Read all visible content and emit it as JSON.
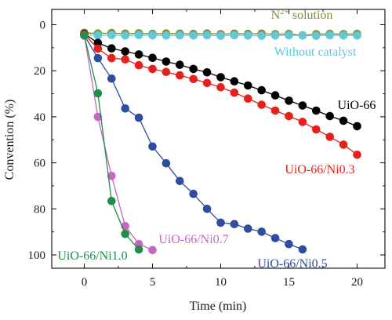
{
  "chart_data": {
    "type": "scatter",
    "xlabel": "Time (min)",
    "ylabel": "Convention (%)",
    "xlim": [
      -2,
      22
    ],
    "ylim": [
      0,
      105
    ],
    "y_inverted": true,
    "x_ticks": [
      0,
      5,
      10,
      15,
      20
    ],
    "y_ticks": [
      0,
      20,
      40,
      60,
      80,
      100
    ],
    "grid": false,
    "series": [
      {
        "name": "N2+ solution",
        "label_main": "N",
        "label_sup": "2+",
        "label_rest": " solution",
        "color": "#8b8b2a",
        "x": [
          0,
          1,
          2,
          3,
          4,
          5,
          6,
          7,
          8,
          9,
          10,
          11,
          12,
          13,
          14,
          15,
          16,
          17,
          18,
          19,
          20
        ],
        "y": [
          3.5,
          3.8,
          3.6,
          3.9,
          3.7,
          4.0,
          3.8,
          3.9,
          4.0,
          3.8,
          4.1,
          3.9,
          4.0,
          3.9,
          4.1,
          4.0,
          4.6,
          4.1,
          4.0,
          4.1,
          4.0
        ]
      },
      {
        "name": "Without catalyst",
        "color": "#5ec9d9",
        "x": [
          0,
          1,
          2,
          3,
          4,
          5,
          6,
          7,
          8,
          9,
          10,
          11,
          12,
          13,
          14,
          15,
          16,
          17,
          18,
          19,
          20
        ],
        "y": [
          4.4,
          4.6,
          4.5,
          4.7,
          4.5,
          4.6,
          4.7,
          4.6,
          4.7,
          4.6,
          4.8,
          4.6,
          4.7,
          4.8,
          4.7,
          4.6,
          4.7,
          4.8,
          4.6,
          4.7,
          4.7
        ]
      },
      {
        "name": "UiO-66",
        "color": "#000000",
        "x": [
          0,
          1,
          2,
          3,
          4,
          5,
          6,
          7,
          8,
          9,
          10,
          11,
          12,
          13,
          14,
          15,
          16,
          17,
          18,
          19,
          20
        ],
        "y": [
          4.0,
          7.9,
          10.3,
          11.6,
          12.9,
          14.4,
          16.0,
          17.4,
          19.2,
          20.7,
          22.8,
          24.6,
          26.4,
          28.5,
          30.7,
          33.0,
          35.1,
          37.3,
          39.7,
          41.7,
          44.1
        ]
      },
      {
        "name": "UiO-66/Ni0.3",
        "color": "#e8201c",
        "x": [
          0,
          1,
          2,
          3,
          4,
          5,
          6,
          7,
          8,
          9,
          10,
          11,
          12,
          13,
          14,
          15,
          16,
          17,
          18,
          19,
          20
        ],
        "y": [
          4.2,
          10.4,
          14.5,
          15.1,
          17.6,
          19.2,
          20.5,
          22.0,
          23.6,
          25.3,
          27.2,
          29.5,
          32.1,
          34.8,
          37.3,
          39.7,
          42.2,
          45.5,
          48.7,
          52.1,
          56.5
        ]
      },
      {
        "name": "UiO-66/Ni0.5",
        "color": "#2e4ca0",
        "x": [
          0,
          1,
          2,
          3,
          4,
          5,
          6,
          7,
          8,
          9,
          10,
          11,
          12,
          13,
          14,
          15,
          16
        ],
        "y": [
          4.6,
          14.5,
          23.4,
          36.4,
          40.4,
          52.9,
          60.2,
          67.9,
          73.5,
          80.0,
          86.0,
          86.6,
          88.6,
          89.9,
          92.7,
          95.3,
          97.6
        ]
      },
      {
        "name": "UiO-66/Ni0.7",
        "color": "#c467c0",
        "x": [
          0,
          1,
          2,
          3,
          4,
          5
        ],
        "y": [
          4.6,
          40.0,
          65.7,
          87.5,
          95.3,
          97.9
        ]
      },
      {
        "name": "UiO-66/Ni1.0",
        "color": "#1f8e47",
        "x": [
          0,
          1,
          2,
          3,
          4
        ],
        "y": [
          4.7,
          29.8,
          76.6,
          90.9,
          97.6
        ]
      }
    ]
  }
}
